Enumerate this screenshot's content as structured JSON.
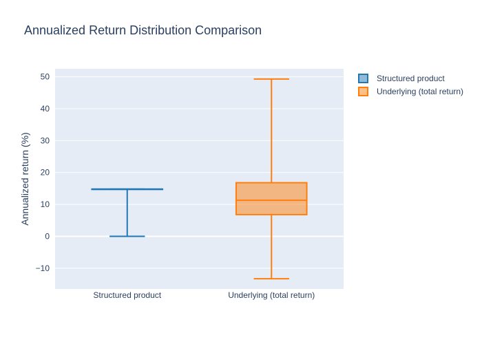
{
  "chart_data": {
    "type": "box",
    "title": "Annualized Return Distribution Comparison",
    "xlabel": "",
    "ylabel": "Annualized return (%)",
    "ylim": [
      -16.5,
      52.5
    ],
    "yticks": [
      50,
      40,
      30,
      20,
      10,
      0,
      -10
    ],
    "ytick_labels": [
      "50",
      "40",
      "30",
      "20",
      "10",
      "0",
      "−10"
    ],
    "grid": true,
    "legend_position": "top-right",
    "categories": [
      "Structured product",
      "Underlying (total return)"
    ],
    "series": [
      {
        "name": "Structured product",
        "color": "#1f77b4",
        "fill": "rgba(31,119,180,0.5)",
        "min": 0,
        "q1": 14.8,
        "median": 14.8,
        "q3": 14.8,
        "max": 14.8
      },
      {
        "name": "Underlying (total return)",
        "color": "#ff7f0e",
        "fill": "rgba(255,127,14,0.5)",
        "min": -13.3,
        "q1": 6.8,
        "median": 11.3,
        "q3": 16.8,
        "max": 49.3
      }
    ]
  }
}
